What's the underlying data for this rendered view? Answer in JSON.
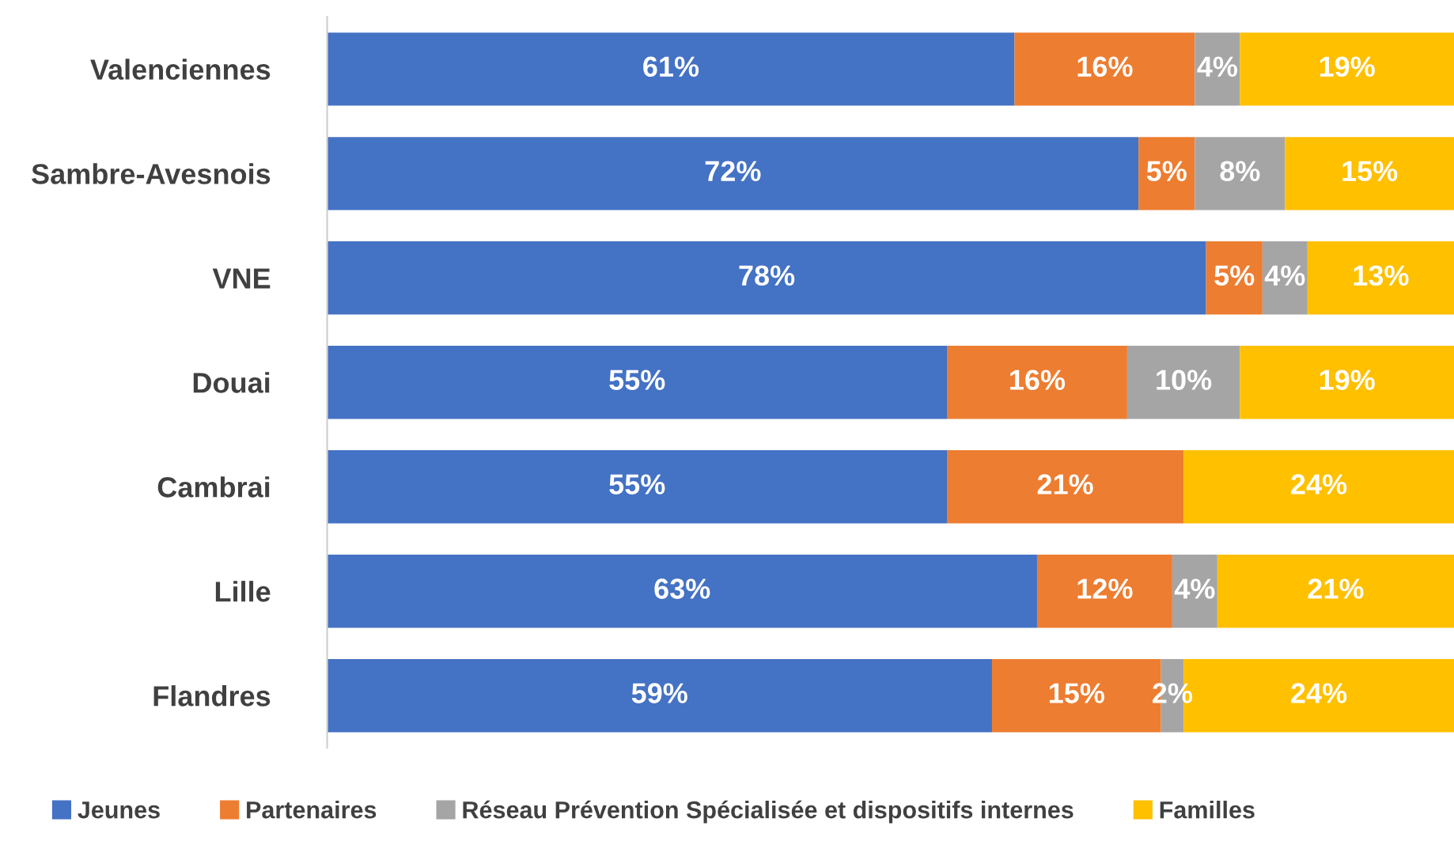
{
  "chart_data": {
    "type": "bar",
    "orientation": "horizontal",
    "stacked": true,
    "categories": [
      "Valenciennes",
      "Sambre-Avesnois",
      "VNE",
      "Douai",
      "Cambrai",
      "Lille",
      "Flandres"
    ],
    "series": [
      {
        "name": "Jeunes",
        "color": "#4472c4",
        "values": [
          61,
          72,
          78,
          55,
          55,
          63,
          59
        ],
        "value_labels": [
          "61%",
          "72%",
          "78%",
          "55%",
          "55%",
          "63%",
          "59%"
        ]
      },
      {
        "name": "Partenaires",
        "color": "#ed7d31",
        "values": [
          16,
          5,
          5,
          16,
          21,
          12,
          15
        ],
        "value_labels": [
          "16%",
          "5%",
          "5%",
          "16%",
          "21%",
          "12%",
          "15%"
        ]
      },
      {
        "name": "Réseau Prévention Spécialisée et dispositifs internes",
        "color": "#a5a5a5",
        "values": [
          4,
          8,
          4,
          10,
          null,
          4,
          2
        ],
        "value_labels": [
          "4%",
          "8%",
          "4%",
          "10%",
          null,
          "4%",
          "2%"
        ]
      },
      {
        "name": "Familles",
        "color": "#ffc000",
        "values": [
          19,
          15,
          13,
          19,
          24,
          21,
          24
        ],
        "value_labels": [
          "19%",
          "15%",
          "13%",
          "19%",
          "24%",
          "21%",
          "24%"
        ]
      }
    ],
    "xlim": [
      0,
      100
    ],
    "tick_labels": "y",
    "grid": false,
    "legend": "bottom"
  }
}
